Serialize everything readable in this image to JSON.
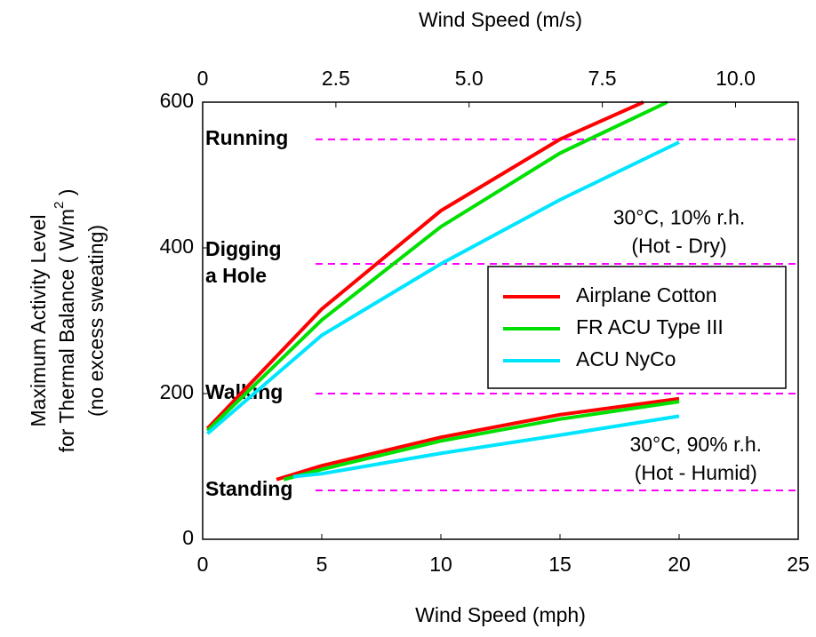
{
  "chart_data": {
    "type": "line",
    "xlabel": "Wind Speed (mph)",
    "x2label": "Wind Speed (m/s)",
    "ylabel": [
      "Maximum Activity Level",
      [
        "for Thermal Balance ( W/m",
        "2",
        " )"
      ],
      "(no excess sweating)"
    ],
    "xlim": [
      0,
      25
    ],
    "xticks": [
      0,
      5,
      10,
      15,
      20,
      25
    ],
    "x2lim": [
      0,
      11.176
    ],
    "x2ticks": [
      0,
      2.5,
      {
        "value": 5,
        "label": "5.0"
      },
      7.5,
      {
        "value": 10,
        "label": "10.0"
      }
    ],
    "ylim": [
      0,
      600
    ],
    "yticks": [
      0,
      200,
      400,
      600
    ],
    "series": [
      {
        "name": "Airplane Cotton",
        "color": "#ff0000",
        "x": [
          0.2,
          5,
          10,
          15,
          18.5,
          null,
          3.1,
          5,
          10,
          15,
          20
        ],
        "values": [
          152,
          316,
          451,
          549,
          600,
          null,
          82,
          101,
          140,
          171,
          193
        ]
      },
      {
        "name": "FR ACU Type III",
        "color": "#00e000",
        "x": [
          0.2,
          5,
          10,
          15,
          19.5,
          null,
          3.4,
          5,
          10,
          15,
          20
        ],
        "values": [
          149,
          301,
          429,
          530,
          600,
          null,
          82,
          96,
          135,
          165,
          189
        ]
      },
      {
        "name": "ACU NyCo",
        "color": "#00e5ff",
        "x": [
          0.2,
          5,
          10,
          15,
          20,
          null,
          3.8,
          5,
          10,
          15,
          20
        ],
        "values": [
          145,
          280,
          378,
          466,
          545,
          null,
          86,
          90,
          118,
          143,
          169
        ]
      }
    ],
    "reference_lines": [
      {
        "label": [
          "Running"
        ],
        "value": 549
      },
      {
        "label": [
          "Digging",
          "a Hole"
        ],
        "value": 378
      },
      {
        "label": [
          "Walking"
        ],
        "value": 200
      },
      {
        "label": [
          "Standing"
        ],
        "value": 67
      }
    ],
    "reference_color": "#ff00ff",
    "annotations": [
      {
        "lines": [
          "30°C, 10% r.h.",
          "(Hot - Dry)"
        ],
        "x": 20,
        "y": 440
      },
      {
        "lines": [
          "30°C, 90% r.h.",
          "(Hot - Humid)"
        ],
        "x": 20.7,
        "y": 128
      }
    ]
  }
}
